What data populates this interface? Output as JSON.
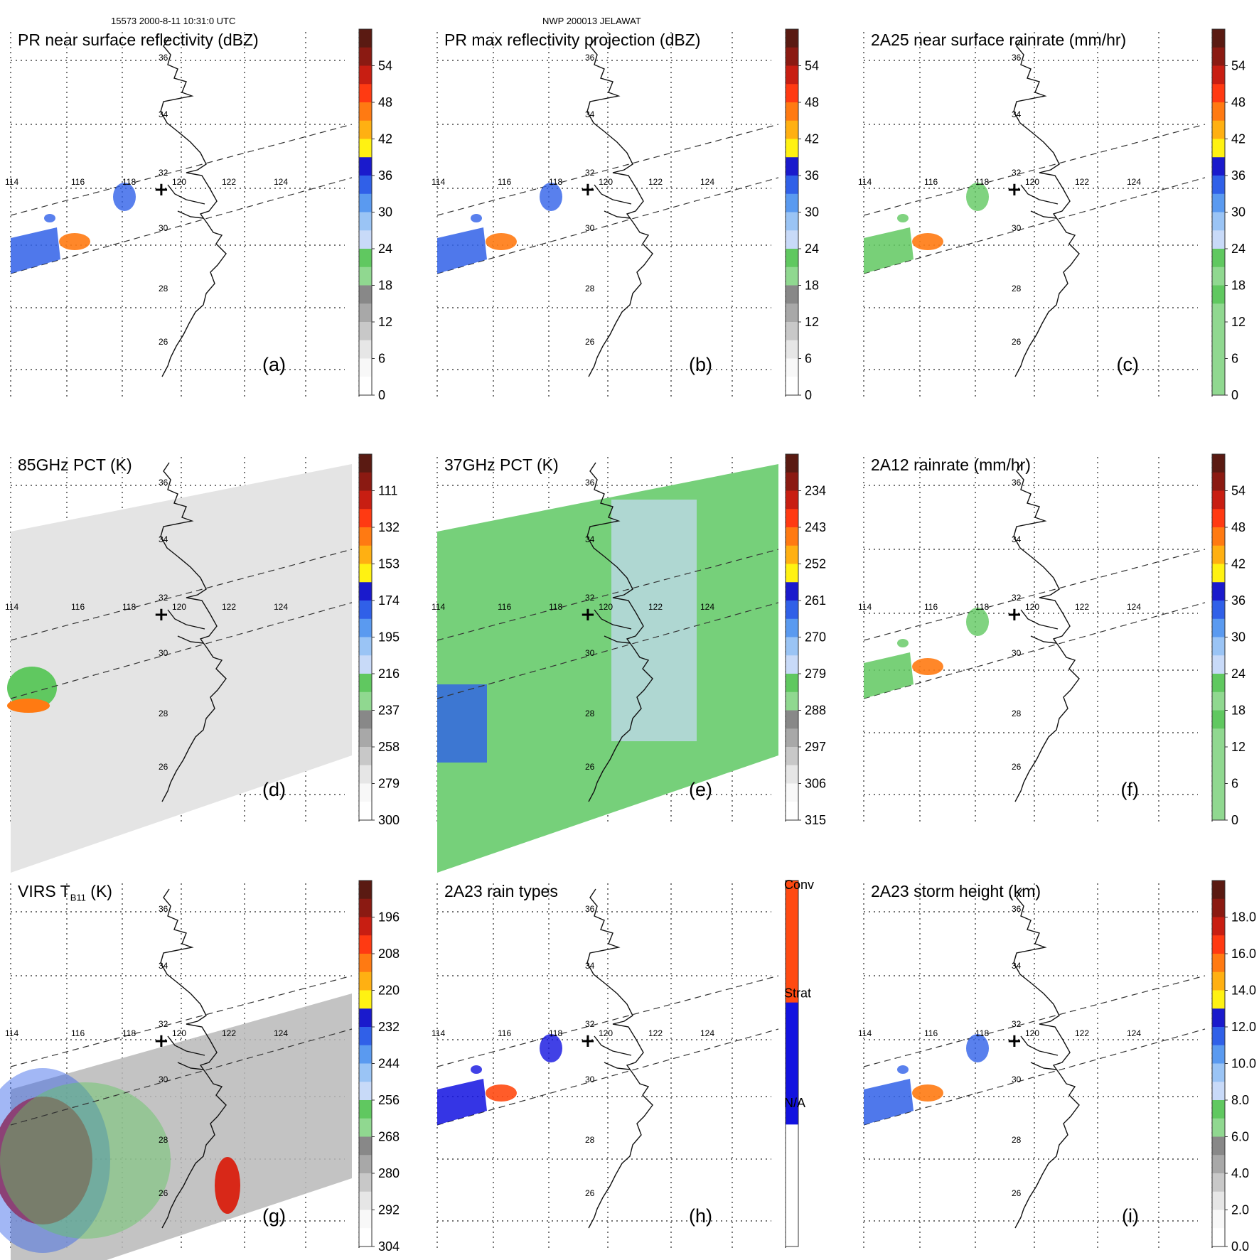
{
  "header": {
    "left": "15573 2000-8-11 10:31:0 UTC",
    "center": "NWP 200013 JELAWAT"
  },
  "map": {
    "lon_labels": [
      "114",
      "116",
      "118",
      "120",
      "122",
      "124"
    ],
    "lat_labels": [
      "36",
      "34",
      "32",
      "30",
      "28",
      "26"
    ],
    "center_marker": "+"
  },
  "panels": [
    {
      "id": "a",
      "label": "(a)",
      "title": "PR near surface reflectivity (dBZ)",
      "colorbar": {
        "ticks": [
          "54",
          "48",
          "42",
          "36",
          "30",
          "24",
          "18",
          "12",
          "6",
          "0"
        ],
        "colors": [
          "#5a1a12",
          "#8b1a12",
          "#c81e12",
          "#ff3a12",
          "#ff7a12",
          "#ffb012",
          "#fff212",
          "#1a1acc",
          "#3060e8",
          "#5a9af0",
          "#9ac4f5",
          "#c8daf8",
          "#60c860",
          "#90d890",
          "#888888",
          "#a8a8a8",
          "#c8c8c8",
          "#e6e6e6",
          "#f8f8f8",
          "#ffffff"
        ]
      }
    },
    {
      "id": "b",
      "label": "(b)",
      "title": "PR max reflectivity projection (dBZ)",
      "colorbar": {
        "ticks": [
          "54",
          "48",
          "42",
          "36",
          "30",
          "24",
          "18",
          "12",
          "6",
          "0"
        ],
        "colors": [
          "#5a1a12",
          "#8b1a12",
          "#c81e12",
          "#ff3a12",
          "#ff7a12",
          "#ffb012",
          "#fff212",
          "#1a1acc",
          "#3060e8",
          "#5a9af0",
          "#9ac4f5",
          "#c8daf8",
          "#60c860",
          "#90d890",
          "#888888",
          "#a8a8a8",
          "#c8c8c8",
          "#e6e6e6",
          "#f8f8f8",
          "#ffffff"
        ]
      }
    },
    {
      "id": "c",
      "label": "(c)",
      "title": "2A25 near surface rainrate (mm/hr)",
      "colorbar": {
        "ticks": [
          "54",
          "48",
          "42",
          "36",
          "30",
          "24",
          "18",
          "12",
          "6",
          "0"
        ],
        "colors": [
          "#5a1a12",
          "#8b1a12",
          "#c81e12",
          "#ff3a12",
          "#ff7a12",
          "#ffb012",
          "#fff212",
          "#1a1acc",
          "#3060e8",
          "#5a9af0",
          "#9ac4f5",
          "#c8daf8",
          "#60c860",
          "#90d890",
          "#60c860",
          "#90d890",
          "#90d890",
          "#90d890",
          "#90d890",
          "#90d890"
        ]
      }
    },
    {
      "id": "d",
      "label": "(d)",
      "title": "85GHz PCT (K)",
      "colorbar": {
        "ticks": [
          "111",
          "132",
          "153",
          "174",
          "195",
          "216",
          "237",
          "258",
          "279",
          "300"
        ],
        "colors": [
          "#5a1a12",
          "#8b1a12",
          "#c81e12",
          "#ff3a12",
          "#ff7a12",
          "#ffb012",
          "#fff212",
          "#1a1acc",
          "#3060e8",
          "#5a9af0",
          "#9ac4f5",
          "#c8daf8",
          "#60c860",
          "#90d890",
          "#888888",
          "#a8a8a8",
          "#c8c8c8",
          "#e6e6e6",
          "#f8f8f8",
          "#ffffff"
        ]
      }
    },
    {
      "id": "e",
      "label": "(e)",
      "title": "37GHz PCT (K)",
      "colorbar": {
        "ticks": [
          "234",
          "243",
          "252",
          "261",
          "270",
          "279",
          "288",
          "297",
          "306",
          "315"
        ],
        "colors": [
          "#5a1a12",
          "#8b1a12",
          "#c81e12",
          "#ff3a12",
          "#ff7a12",
          "#ffb012",
          "#fff212",
          "#1a1acc",
          "#3060e8",
          "#5a9af0",
          "#9ac4f5",
          "#c8daf8",
          "#60c860",
          "#90d890",
          "#888888",
          "#a8a8a8",
          "#c8c8c8",
          "#e6e6e6",
          "#f8f8f8",
          "#ffffff"
        ]
      }
    },
    {
      "id": "f",
      "label": "(f)",
      "title": "2A12 rainrate (mm/hr)",
      "colorbar": {
        "ticks": [
          "54",
          "48",
          "42",
          "36",
          "30",
          "24",
          "18",
          "12",
          "6",
          "0"
        ],
        "colors": [
          "#5a1a12",
          "#8b1a12",
          "#c81e12",
          "#ff3a12",
          "#ff7a12",
          "#ffb012",
          "#fff212",
          "#1a1acc",
          "#3060e8",
          "#5a9af0",
          "#9ac4f5",
          "#c8daf8",
          "#60c860",
          "#90d890",
          "#60c860",
          "#90d890",
          "#90d890",
          "#90d890",
          "#90d890",
          "#90d890"
        ]
      }
    },
    {
      "id": "g",
      "label": "(g)",
      "title": "VIRS T",
      "title_sub": "B11",
      "title_suffix": " (K)",
      "colorbar": {
        "ticks": [
          "196",
          "208",
          "220",
          "232",
          "244",
          "256",
          "268",
          "280",
          "292",
          "304"
        ],
        "colors": [
          "#5a1a12",
          "#8b1a12",
          "#c81e12",
          "#ff3a12",
          "#ff7a12",
          "#ffb012",
          "#fff212",
          "#1a1acc",
          "#3060e8",
          "#5a9af0",
          "#9ac4f5",
          "#c8daf8",
          "#60c860",
          "#90d890",
          "#888888",
          "#a8a8a8",
          "#c8c8c8",
          "#e6e6e6",
          "#f8f8f8",
          "#ffffff"
        ]
      }
    },
    {
      "id": "h",
      "label": "(h)",
      "title": "2A23 rain types",
      "colorbar": {
        "ticks": [
          "Conv",
          "Strat",
          "N/A"
        ],
        "colors": [
          "#ff4a12",
          "#1212e0",
          "#ffffff"
        ]
      }
    },
    {
      "id": "i",
      "label": "(i)",
      "title": "2A23 storm height (km)",
      "colorbar": {
        "ticks": [
          "18.0",
          "16.0",
          "14.0",
          "12.0",
          "10.0",
          "8.0",
          "6.0",
          "4.0",
          "2.0",
          "0.0"
        ],
        "colors": [
          "#5a1a12",
          "#8b1a12",
          "#c81e12",
          "#ff3a12",
          "#ff7a12",
          "#ffb012",
          "#fff212",
          "#1a1acc",
          "#3060e8",
          "#5a9af0",
          "#9ac4f5",
          "#c8daf8",
          "#60c860",
          "#90d890",
          "#888888",
          "#a8a8a8",
          "#c8c8c8",
          "#e6e6e6",
          "#f8f8f8",
          "#ffffff"
        ]
      }
    }
  ]
}
